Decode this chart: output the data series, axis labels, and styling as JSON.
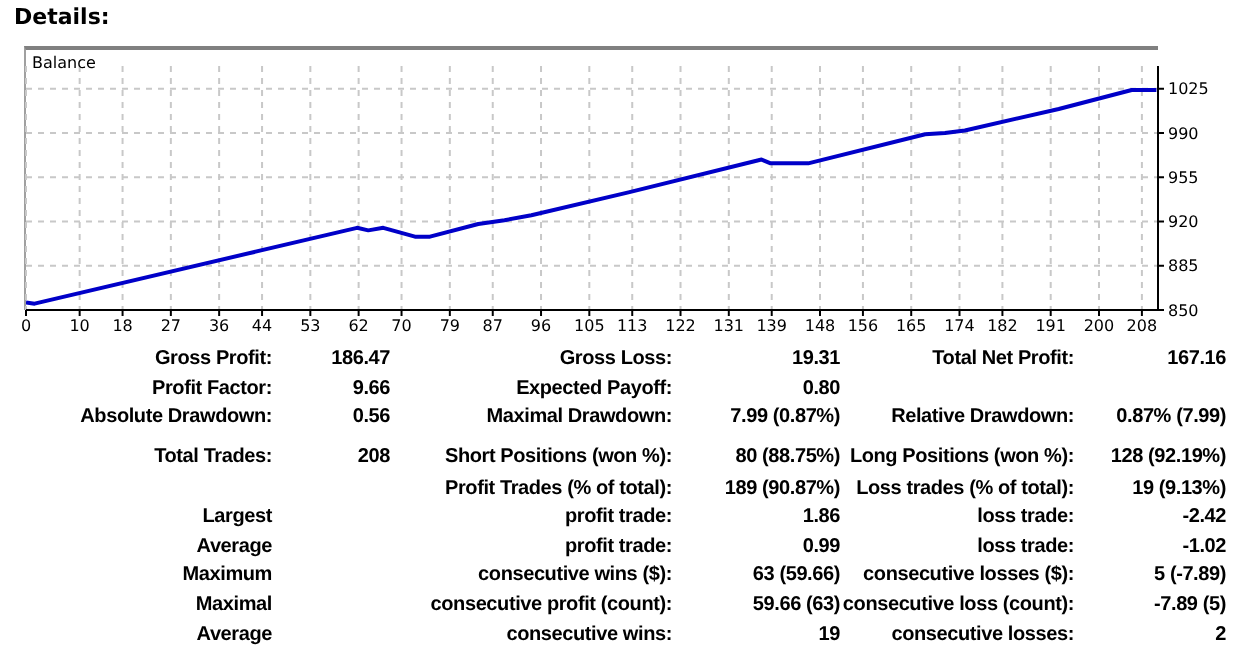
{
  "chart_data": {
    "type": "line",
    "title": "Details:",
    "x": [
      0,
      1.6,
      61.7,
      63.8,
      66.6,
      72.5,
      75.3,
      84.3,
      89.2,
      94.2,
      112.3,
      137.1,
      138.8,
      145.8,
      167.6,
      171.3,
      175,
      192.5,
      206.1,
      210.7
    ],
    "series": [
      {
        "name": "Balance",
        "color": "#0000c8",
        "values": [
          856,
          855,
          915,
          913,
          915,
          908,
          908,
          918,
          921,
          925,
          943,
          969,
          966,
          966,
          989,
          990,
          992,
          1009,
          1024,
          1024
        ]
      }
    ],
    "xlim": [
      0,
      211
    ],
    "xticks": [
      0,
      10,
      18,
      27,
      36,
      44,
      53,
      62,
      70,
      79,
      87,
      96,
      105,
      113,
      122,
      131,
      139,
      148,
      156,
      165,
      174,
      182,
      191,
      200,
      208
    ],
    "ylim": [
      850,
      1043
    ],
    "yticks": [
      850,
      885,
      920,
      955,
      990,
      1025
    ],
    "grid": true,
    "legend": "top left",
    "marker": "none",
    "line_style": "solid",
    "annotations": [
      "Gross Profit:",
      "186.47",
      "Gross Loss:",
      "19.31",
      "Total Net Profit:",
      "167.16",
      "Profit Factor:",
      "9.66",
      "Expected Payoff:",
      "0.80",
      "Absolute Drawdown:",
      "0.56",
      "Maximal Drawdown:",
      "7.99 (0.87%)",
      "Relative Drawdown:",
      "0.87% (7.99)",
      "Total Trades:",
      "208",
      "Short Positions (won %):",
      "80 (88.75%)",
      "Long Positions (won %):",
      "128 (92.19%)",
      "Profit Trades (% of total):",
      "189 (90.87%)",
      "Loss trades (% of total):",
      "19 (9.13%)",
      "Largest",
      "profit trade:",
      "1.86",
      "loss trade:",
      "-2.42",
      "Average",
      "profit trade:",
      "0.99",
      "loss trade:",
      "-1.02",
      "Maximum",
      "consecutive wins ($):",
      "63 (59.66)",
      "consecutive losses ($):",
      "5 (-7.89)",
      "Maximal",
      "consecutive profit (count):",
      "59.66 (63)",
      "consecutive loss (count):",
      "-7.89 (5)",
      "Average",
      "consecutive wins:",
      "19",
      "consecutive losses:",
      "2"
    ]
  }
}
